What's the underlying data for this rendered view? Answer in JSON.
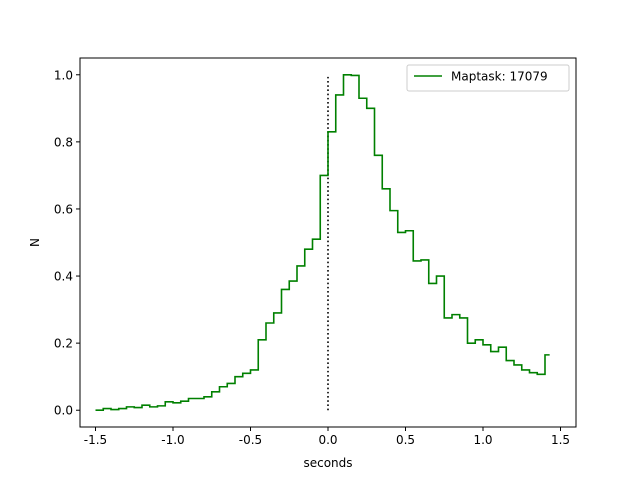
{
  "chart_data": {
    "type": "line",
    "step": true,
    "xlabel": "seconds",
    "ylabel": "N",
    "xlim": [
      -1.6,
      1.6
    ],
    "ylim": [
      -0.05,
      1.05
    ],
    "xticks": [
      -1.5,
      -1.0,
      -0.5,
      0.0,
      0.5,
      1.0,
      1.5
    ],
    "xtick_labels": [
      "-1.5",
      "-1.0",
      "-0.5",
      "0.0",
      "0.5",
      "1.0",
      "1.5"
    ],
    "yticks": [
      0.0,
      0.2,
      0.4,
      0.6,
      0.8,
      1.0
    ],
    "ytick_labels": [
      "0.0",
      "0.2",
      "0.4",
      "0.6",
      "0.8",
      "1.0"
    ],
    "grid": false,
    "legend_position": "top-right",
    "series": [
      {
        "name": "Maptask: 17079",
        "color": "#008000",
        "x": [
          -1.5,
          -1.45,
          -1.4,
          -1.35,
          -1.3,
          -1.25,
          -1.2,
          -1.15,
          -1.1,
          -1.05,
          -1.0,
          -0.95,
          -0.9,
          -0.85,
          -0.8,
          -0.75,
          -0.7,
          -0.65,
          -0.6,
          -0.55,
          -0.5,
          -0.45,
          -0.4,
          -0.35,
          -0.3,
          -0.25,
          -0.2,
          -0.15,
          -0.1,
          -0.05,
          0.0,
          0.05,
          0.1,
          0.15,
          0.2,
          0.25,
          0.3,
          0.35,
          0.4,
          0.45,
          0.5,
          0.55,
          0.6,
          0.65,
          0.7,
          0.75,
          0.8,
          0.85,
          0.9,
          0.95,
          1.0,
          1.05,
          1.1,
          1.15,
          1.2,
          1.25,
          1.3,
          1.35,
          1.4
        ],
        "y": [
          0.0,
          0.005,
          0.002,
          0.005,
          0.01,
          0.008,
          0.015,
          0.01,
          0.013,
          0.025,
          0.022,
          0.027,
          0.035,
          0.035,
          0.04,
          0.055,
          0.07,
          0.08,
          0.1,
          0.11,
          0.12,
          0.21,
          0.26,
          0.29,
          0.36,
          0.385,
          0.43,
          0.48,
          0.51,
          0.7,
          0.83,
          0.94,
          1.0,
          0.998,
          0.93,
          0.9,
          0.76,
          0.66,
          0.595,
          0.53,
          0.535,
          0.445,
          0.448,
          0.378,
          0.4,
          0.275,
          0.285,
          0.275,
          0.2,
          0.21,
          0.195,
          0.175,
          0.188,
          0.148,
          0.135,
          0.12,
          0.112,
          0.107,
          0.165
        ],
        "end_x": 1.43
      }
    ],
    "annotations": [
      {
        "type": "vline",
        "x": 0.0,
        "y_from": 0.0,
        "y_to": 1.0,
        "style": "dotted",
        "color": "#000000"
      }
    ]
  }
}
